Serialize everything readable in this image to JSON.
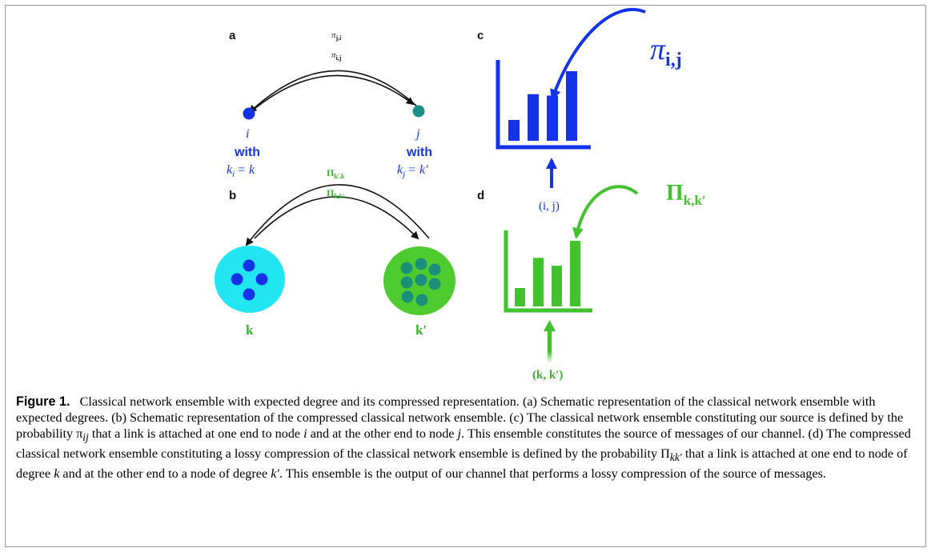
{
  "panels": {
    "a": {
      "letter": "a",
      "arc_top_label": "π",
      "arc_top_sub": "j,i",
      "arc_bottom_label": "π",
      "arc_bottom_sub": "i,j",
      "node_left": {
        "name": "i",
        "with": "with",
        "degree": "k",
        "degree_sub": "i",
        "degree_rhs": "= k"
      },
      "node_right": {
        "name": "j",
        "with": "with",
        "degree": "k",
        "degree_sub": "j",
        "degree_rhs": "= k′"
      }
    },
    "b": {
      "letter": "b",
      "arc_top_label": "Π",
      "arc_top_sub": "k′,k",
      "arc_bottom_label": "Π",
      "arc_bottom_sub": "k,k′",
      "class_left": "k",
      "class_right": "k′"
    },
    "c": {
      "letter": "c",
      "big_label": "π",
      "big_label_sub": "i,j",
      "input_label": "(i, j)",
      "bar_values": [
        0.3,
        0.67,
        0.65,
        1.0
      ]
    },
    "d": {
      "letter": "d",
      "big_label": "Π",
      "big_label_sub": "k,k′",
      "input_label": "(k, k′)",
      "bar_values": [
        0.28,
        0.74,
        0.62,
        1.0
      ]
    }
  },
  "colors": {
    "blue": "#1433e8",
    "teal": "#1a8f8a",
    "green": "#42c22c",
    "cyan": "#22e5f2",
    "dark_green_node": "#1a8f7a"
  },
  "caption": {
    "label": "Figure 1.",
    "text": "Classical network ensemble with expected degree and its compressed representation. (a) Schematic representation of the classical network ensemble with expected degrees. (b) Schematic representation of the compressed classical network ensemble. (c) The classical network ensemble constituting our source is defined by the probability π",
    "text_sub1": "ij",
    "text2": " that a link is attached at one end to node ",
    "text_i": "i",
    "text3": " and at the other end to node ",
    "text_j": "j",
    "text4": ". This ensemble constitutes the source of messages of our channel. (d) The compressed classical network ensemble constituting a lossy compression of the classical network ensemble is defined by the probability Π",
    "text_sub2": "kk′",
    "text5": " that a link is attached at one end to node of degree ",
    "text_k": "k",
    "text6": " and at the other end to a node of degree ",
    "text_k2": "k′",
    "text7": ". This ensemble is the output of our channel that performs a lossy compression of the source of messages."
  }
}
